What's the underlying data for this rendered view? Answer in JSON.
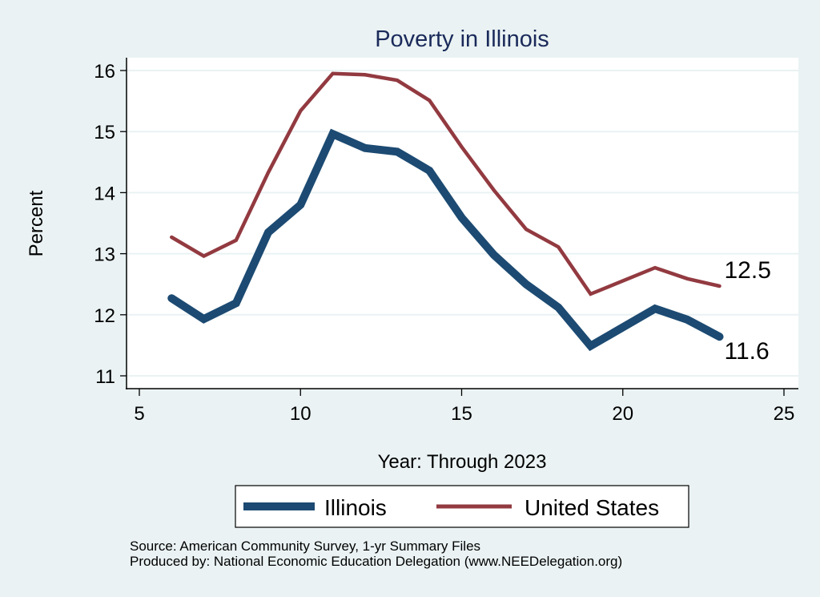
{
  "chart_data": {
    "type": "line",
    "title": "Poverty in Illinois",
    "xlabel": "Year: Through 2023",
    "ylabel": "Percent",
    "xlim": [
      4.6,
      25.4
    ],
    "ylim": [
      10.79,
      16.21
    ],
    "xticks": [
      5,
      10,
      15,
      20,
      25
    ],
    "yticks": [
      11,
      12,
      13,
      14,
      15,
      16
    ],
    "grid": true,
    "legend_position": "bottom",
    "series": [
      {
        "name": "Illinois",
        "color": "#1c4a72",
        "x": [
          6,
          7,
          8,
          9,
          10,
          11,
          12,
          13,
          14,
          15,
          16,
          17,
          18,
          19,
          21,
          22,
          23
        ],
        "values": [
          12.27,
          11.93,
          12.19,
          13.35,
          13.8,
          14.96,
          14.73,
          14.67,
          14.36,
          13.59,
          12.98,
          12.5,
          12.12,
          11.49,
          12.1,
          11.92,
          11.64
        ],
        "end_label": "11.6"
      },
      {
        "name": "United States",
        "color": "#923a40",
        "x": [
          6,
          7,
          8,
          9,
          10,
          11,
          12,
          13,
          14,
          15,
          16,
          17,
          18,
          19,
          21,
          22,
          23
        ],
        "values": [
          13.27,
          12.96,
          13.22,
          14.33,
          15.34,
          15.95,
          15.93,
          15.84,
          15.51,
          14.75,
          14.04,
          13.4,
          13.11,
          12.34,
          12.77,
          12.59,
          12.47
        ],
        "end_label": "12.5"
      }
    ],
    "notes": [
      "Source: American Community Survey, 1-yr Summary Files",
      "Produced by: National Economic Education Delegation (www.NEEDelegation.org)"
    ]
  }
}
